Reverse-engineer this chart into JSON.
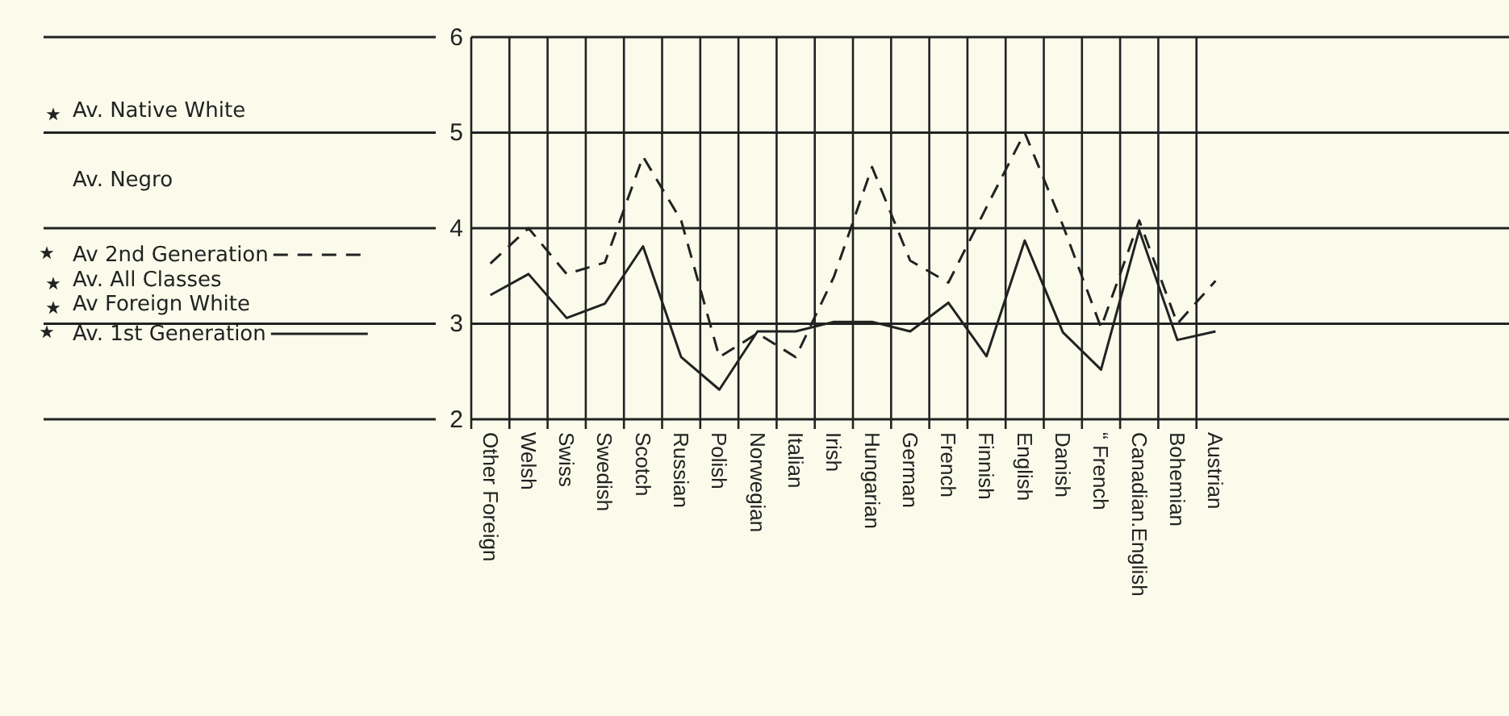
{
  "chart_data": {
    "type": "line",
    "categories": [
      "Other Foreign",
      "Welsh",
      "Swiss",
      "Swedish",
      "Scotch",
      "Russian",
      "Polish",
      "Norwegian",
      "Italian",
      "Irish",
      "Hungarian",
      "German",
      "French",
      "Finnish",
      "English",
      "Danish",
      "“ French",
      "Canadian.English",
      "Bohemian",
      "Austrian"
    ],
    "series": [
      {
        "name": "Av 2nd Generation",
        "color": "#222222",
        "line_style": "dashed",
        "values": [
          3.63,
          4.0,
          3.52,
          3.64,
          4.75,
          4.08,
          2.65,
          2.9,
          2.65,
          3.49,
          4.64,
          3.66,
          3.43,
          4.22,
          5.0,
          4.03,
          2.96,
          4.08,
          3.0,
          3.45
        ]
      },
      {
        "name": "Av. 1st Generation",
        "color": "#222222",
        "line_style": "solid",
        "values": [
          3.3,
          3.52,
          3.06,
          3.21,
          3.81,
          2.65,
          2.31,
          2.92,
          2.92,
          3.02,
          3.02,
          2.92,
          3.22,
          2.66,
          3.87,
          2.91,
          2.52,
          3.98,
          2.83,
          2.92
        ]
      }
    ],
    "ylim": [
      2,
      6
    ],
    "yticks": [
      2,
      3,
      4,
      5,
      6
    ],
    "grid": true,
    "legend": "left",
    "annotations": [
      "Av. Native White",
      "Av. Negro",
      "Av. All Classes",
      "Av Foreign White"
    ]
  }
}
